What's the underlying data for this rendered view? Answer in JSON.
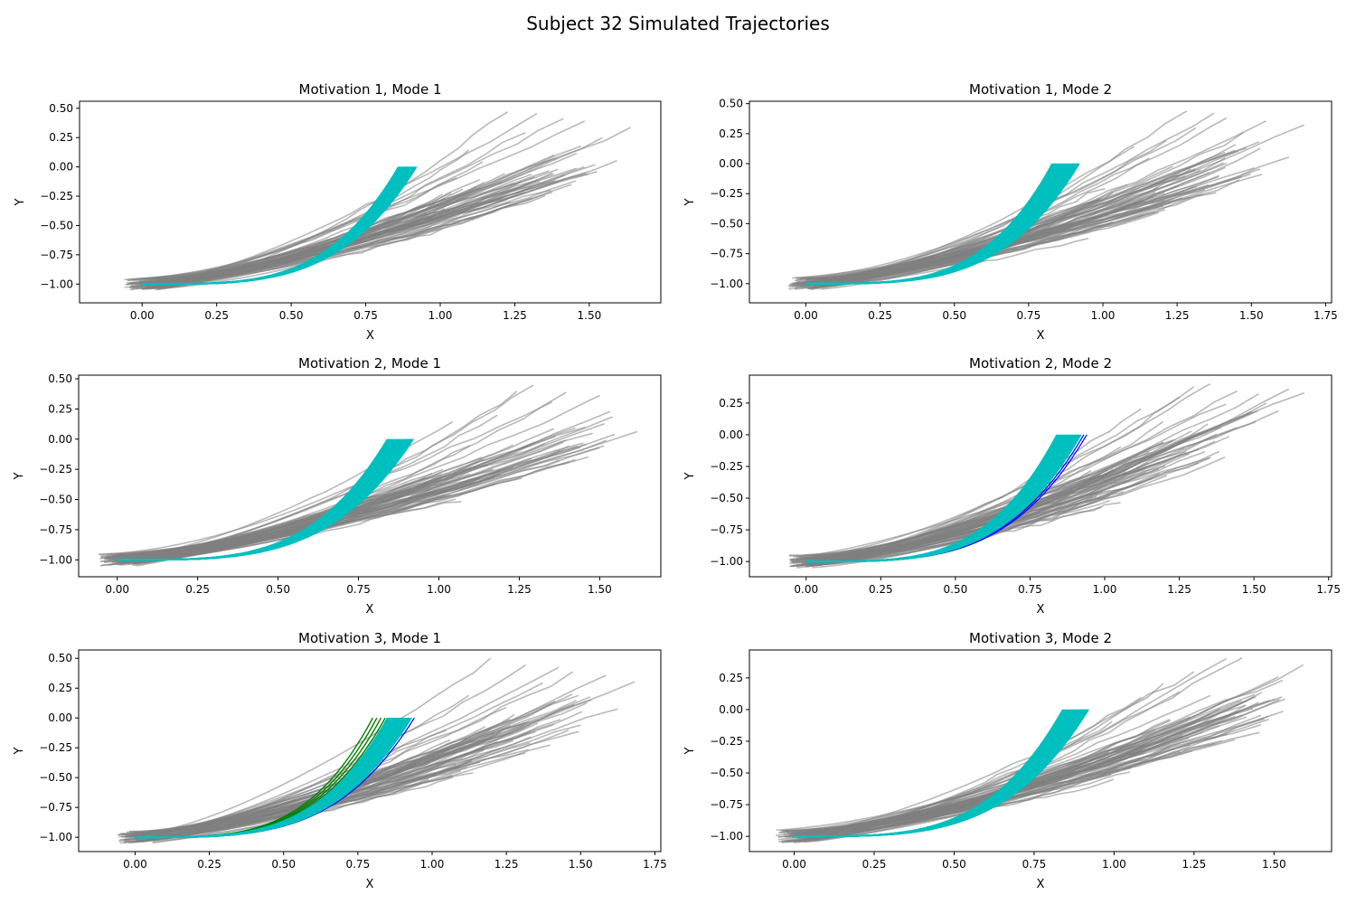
{
  "figure": {
    "title": "Subject 32 Simulated Trajectories"
  },
  "colors": {
    "gray": "#808080",
    "cyan": "#00bfbf",
    "blue": "#0000ff",
    "green": "#008000",
    "purple": "#8000c0"
  },
  "chart_data": [
    {
      "type": "line",
      "title": "Motivation 1, Mode 1",
      "xlabel": "X",
      "ylabel": "Y",
      "xlim": [
        -0.21,
        1.74
      ],
      "ylim": [
        -1.16,
        0.56
      ],
      "xticks": [
        "0.00",
        "0.25",
        "0.50",
        "0.75",
        "1.00",
        "1.25",
        "1.50"
      ],
      "yticks": [
        "0.50",
        "0.25",
        "0.00",
        "−0.25",
        "−0.50",
        "−0.75",
        "−1.00"
      ],
      "xtick_values": [
        0,
        0.25,
        0.5,
        0.75,
        1.0,
        1.25,
        1.5
      ],
      "ytick_values": [
        0.5,
        0.25,
        0,
        -0.25,
        -0.5,
        -0.75,
        -1.0
      ],
      "gray_endpoints_x": [
        1.05,
        1.1,
        1.15,
        1.22,
        1.28,
        1.32,
        1.38,
        1.42,
        1.48,
        1.55,
        1.6,
        1.64
      ],
      "gray_endpoints_y": [
        -0.1,
        0.15,
        0.05,
        0.48,
        0.3,
        0.45,
        0.1,
        0.42,
        0.38,
        0.25,
        0.05,
        0.33
      ],
      "cyan_end_x": [
        0.86,
        0.92
      ],
      "blue_end_x": [
        0.88,
        0.9
      ],
      "green_end_x": [],
      "series": []
    },
    {
      "type": "line",
      "title": "Motivation 1, Mode 2",
      "xlabel": "X",
      "ylabel": "Y",
      "xlim": [
        -0.19,
        1.77
      ],
      "ylim": [
        -1.16,
        0.52
      ],
      "xticks": [
        "0.00",
        "0.25",
        "0.50",
        "0.75",
        "1.00",
        "1.25",
        "1.50",
        "1.75"
      ],
      "yticks": [
        "0.50",
        "0.25",
        "0.00",
        "−0.25",
        "−0.50",
        "−0.75",
        "−1.00"
      ],
      "xtick_values": [
        0,
        0.25,
        0.5,
        0.75,
        1.0,
        1.25,
        1.5,
        1.75
      ],
      "ytick_values": [
        0.5,
        0.25,
        0,
        -0.25,
        -0.5,
        -0.75,
        -1.0
      ],
      "gray_endpoints_x": [
        1.0,
        1.1,
        1.15,
        1.22,
        1.28,
        1.32,
        1.38,
        1.42,
        1.48,
        1.55,
        1.62,
        1.68
      ],
      "gray_endpoints_y": [
        -0.2,
        0.15,
        0.05,
        0.2,
        0.43,
        0.3,
        0.42,
        0.38,
        0.25,
        0.35,
        0.05,
        0.32
      ],
      "cyan_end_x": [
        0.83,
        0.92
      ],
      "blue_end_x": [
        0.9,
        0.92
      ],
      "green_end_x": [],
      "series": []
    },
    {
      "type": "line",
      "title": "Motivation 2, Mode 1",
      "xlabel": "X",
      "ylabel": "Y",
      "xlim": [
        -0.12,
        1.69
      ],
      "ylim": [
        -1.14,
        0.53
      ],
      "xticks": [
        "0.00",
        "0.25",
        "0.50",
        "0.75",
        "1.00",
        "1.25",
        "1.50"
      ],
      "yticks": [
        "0.50",
        "0.25",
        "0.00",
        "−0.25",
        "−0.50",
        "−0.75",
        "−1.00"
      ],
      "xtick_values": [
        0,
        0.25,
        0.5,
        0.75,
        1.0,
        1.25,
        1.5
      ],
      "ytick_values": [
        0.5,
        0.25,
        0,
        -0.25,
        -0.5,
        -0.75,
        -1.0
      ],
      "gray_endpoints_x": [
        1.05,
        1.1,
        1.18,
        1.25,
        1.3,
        1.35,
        1.4,
        1.45,
        1.5,
        1.55,
        1.61
      ],
      "gray_endpoints_y": [
        0.15,
        -0.05,
        0.2,
        0.4,
        0.45,
        0.3,
        0.38,
        0.1,
        0.35,
        0.05,
        0.06
      ],
      "cyan_end_x": [
        0.84,
        0.92
      ],
      "blue_end_x": [
        0.9,
        0.92
      ],
      "green_end_x": [],
      "series": []
    },
    {
      "type": "line",
      "title": "Motivation 2, Mode 2",
      "xlabel": "X",
      "ylabel": "Y",
      "xlim": [
        -0.19,
        1.76
      ],
      "ylim": [
        -1.12,
        0.47
      ],
      "xticks": [
        "0.00",
        "0.25",
        "0.50",
        "0.75",
        "1.00",
        "1.25",
        "1.50",
        "1.75"
      ],
      "yticks": [
        "0.25",
        "0.00",
        "−0.25",
        "−0.50",
        "−0.75",
        "−1.00"
      ],
      "xtick_values": [
        0,
        0.25,
        0.5,
        0.75,
        1.0,
        1.25,
        1.5,
        1.75
      ],
      "ytick_values": [
        0.25,
        0,
        -0.25,
        -0.5,
        -0.75,
        -1.0
      ],
      "gray_endpoints_x": [
        1.05,
        1.12,
        1.2,
        1.25,
        1.3,
        1.35,
        1.4,
        1.45,
        1.52,
        1.58,
        1.62,
        1.67
      ],
      "gray_endpoints_y": [
        -0.1,
        0.2,
        0.1,
        0.3,
        0.38,
        0.4,
        0.25,
        0.35,
        0.32,
        0.18,
        0.35,
        0.33
      ],
      "cyan_end_x": [
        0.84,
        0.92
      ],
      "blue_end_x": [
        0.9,
        0.94
      ],
      "green_end_x": [],
      "series": []
    },
    {
      "type": "line",
      "title": "Motivation 3, Mode 1",
      "xlabel": "X",
      "ylabel": "Y",
      "xlim": [
        -0.19,
        1.77
      ],
      "ylim": [
        -1.12,
        0.57
      ],
      "xticks": [
        "0.00",
        "0.25",
        "0.50",
        "0.75",
        "1.00",
        "1.25",
        "1.50",
        "1.75"
      ],
      "yticks": [
        "0.50",
        "0.25",
        "0.00",
        "−0.25",
        "−0.50",
        "−0.75",
        "−1.00"
      ],
      "xtick_values": [
        0,
        0.25,
        0.5,
        0.75,
        1.0,
        1.25,
        1.5,
        1.75
      ],
      "ytick_values": [
        0.5,
        0.25,
        0,
        -0.25,
        -0.5,
        -0.75,
        -1.0
      ],
      "gray_endpoints_x": [
        1.05,
        1.12,
        1.2,
        1.25,
        1.32,
        1.38,
        1.42,
        1.48,
        1.52,
        1.58,
        1.62,
        1.68
      ],
      "gray_endpoints_y": [
        -0.1,
        0.2,
        0.5,
        0.1,
        0.45,
        0.3,
        0.42,
        0.38,
        0.12,
        0.35,
        0.08,
        0.31
      ],
      "cyan_end_x": [
        0.85,
        0.93
      ],
      "blue_end_x": [
        0.9,
        0.94
      ],
      "green_end_x": [
        0.8,
        0.87
      ],
      "series": []
    },
    {
      "type": "line",
      "title": "Motivation 3, Mode 2",
      "xlabel": "X",
      "ylabel": "Y",
      "xlim": [
        -0.14,
        1.68
      ],
      "ylim": [
        -1.12,
        0.47
      ],
      "xticks": [
        "0.00",
        "0.25",
        "0.50",
        "0.75",
        "1.00",
        "1.25",
        "1.50"
      ],
      "yticks": [
        "0.25",
        "0.00",
        "−0.25",
        "−0.50",
        "−0.75",
        "−1.00"
      ],
      "xtick_values": [
        0,
        0.25,
        0.5,
        0.75,
        1.0,
        1.25,
        1.5
      ],
      "ytick_values": [
        0.25,
        0,
        -0.25,
        -0.5,
        -0.75,
        -1.0
      ],
      "gray_endpoints_x": [
        1.0,
        1.08,
        1.15,
        1.2,
        1.25,
        1.3,
        1.35,
        1.4,
        1.45,
        1.52,
        1.59
      ],
      "gray_endpoints_y": [
        -0.1,
        0.1,
        0.2,
        0.15,
        0.3,
        0.12,
        0.4,
        0.41,
        0.1,
        0.25,
        0.35
      ],
      "cyan_end_x": [
        0.84,
        0.92
      ],
      "blue_end_x": [
        0.9,
        0.92
      ],
      "green_end_x": [],
      "series": []
    }
  ]
}
